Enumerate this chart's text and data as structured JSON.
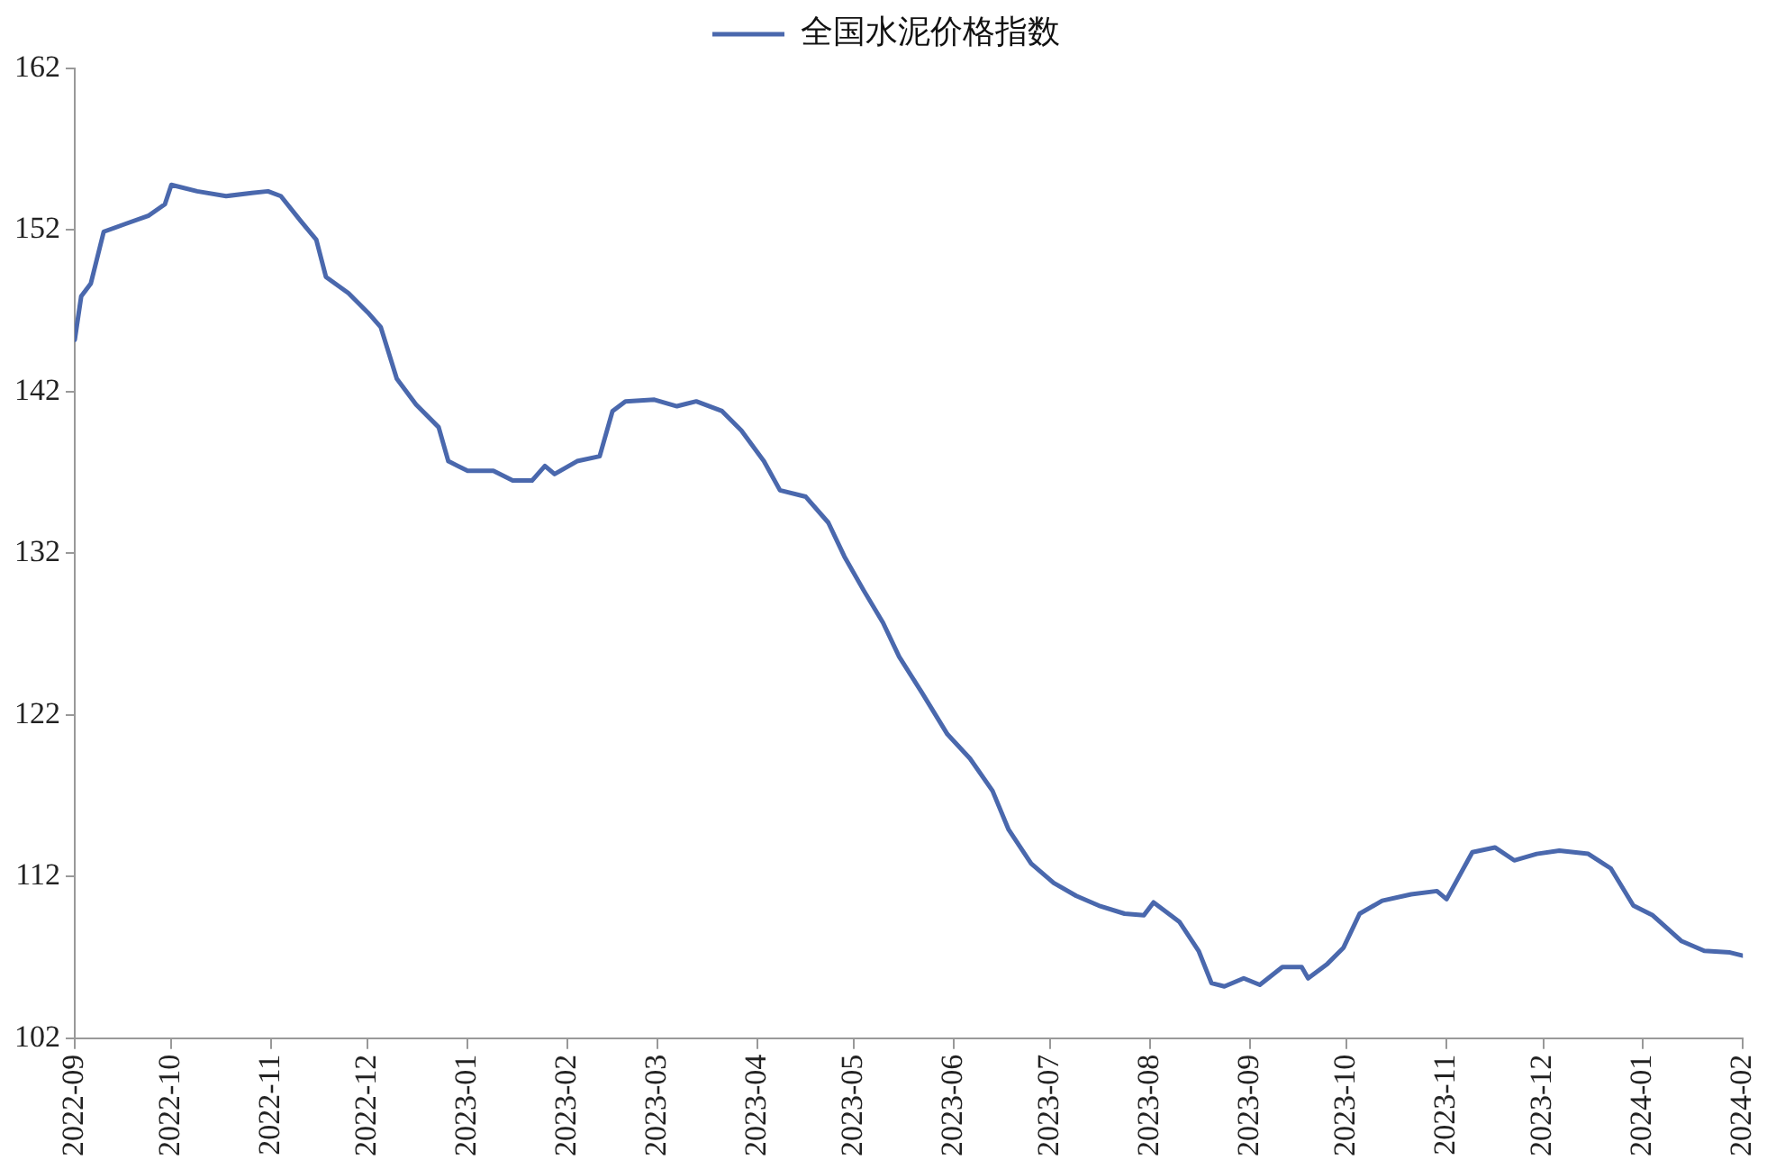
{
  "chart_data": {
    "type": "line",
    "legend": "top",
    "grid": false,
    "marker": "none",
    "line_style": "solid",
    "x": [
      "2022-09-01",
      "2022-09-03",
      "2022-09-06",
      "2022-09-10",
      "2022-09-17",
      "2022-09-24",
      "2022-09-29",
      "2022-10-01",
      "2022-10-09",
      "2022-10-18",
      "2022-10-26",
      "2022-10-31",
      "2022-11-04",
      "2022-11-10",
      "2022-11-15",
      "2022-11-18",
      "2022-11-25",
      "2022-12-01",
      "2022-12-05",
      "2022-12-10",
      "2022-12-16",
      "2022-12-23",
      "2022-12-26",
      "2023-01-01",
      "2023-01-09",
      "2023-01-15",
      "2023-01-21",
      "2023-01-25",
      "2023-01-28",
      "2023-02-04",
      "2023-02-11",
      "2023-02-15",
      "2023-02-19",
      "2023-02-28",
      "2023-03-07",
      "2023-03-13",
      "2023-03-21",
      "2023-03-27",
      "2023-04-03",
      "2023-04-08",
      "2023-04-16",
      "2023-04-23",
      "2023-04-28",
      "2023-05-04",
      "2023-05-10",
      "2023-05-15",
      "2023-05-22",
      "2023-05-30",
      "2023-06-06",
      "2023-06-13",
      "2023-06-18",
      "2023-06-25",
      "2023-07-02",
      "2023-07-09",
      "2023-07-16",
      "2023-07-24",
      "2023-07-30",
      "2023-08-02",
      "2023-08-10",
      "2023-08-16",
      "2023-08-20",
      "2023-08-24",
      "2023-08-30",
      "2023-09-04",
      "2023-09-11",
      "2023-09-17",
      "2023-09-19",
      "2023-09-25",
      "2023-09-30",
      "2023-10-05",
      "2023-10-12",
      "2023-10-21",
      "2023-10-29",
      "2023-11-01",
      "2023-11-09",
      "2023-11-16",
      "2023-11-22",
      "2023-11-29",
      "2023-12-06",
      "2023-12-15",
      "2023-12-22",
      "2023-12-29",
      "2024-01-04",
      "2024-01-13",
      "2024-01-20",
      "2024-01-28",
      "2024-02-01"
    ],
    "series": [
      {
        "name": "全国水泥价格指数",
        "color": "#4a68ad",
        "values": [
          145.2,
          147.9,
          148.7,
          151.9,
          152.4,
          152.9,
          153.6,
          154.8,
          154.4,
          154.1,
          154.3,
          154.4,
          154.1,
          152.6,
          151.4,
          149.1,
          148.1,
          146.9,
          146.0,
          142.8,
          141.2,
          139.8,
          137.7,
          137.1,
          137.1,
          136.5,
          136.5,
          137.4,
          136.9,
          137.7,
          138.0,
          140.8,
          141.4,
          141.5,
          141.1,
          141.4,
          140.8,
          139.6,
          137.7,
          135.9,
          135.5,
          133.9,
          131.8,
          129.7,
          127.7,
          125.6,
          123.4,
          120.8,
          119.3,
          117.3,
          114.9,
          112.8,
          111.6,
          110.8,
          110.2,
          109.7,
          109.6,
          110.4,
          109.2,
          107.4,
          105.4,
          105.2,
          105.7,
          105.3,
          106.4,
          106.4,
          105.7,
          106.6,
          107.6,
          109.7,
          110.5,
          110.9,
          111.1,
          110.6,
          113.5,
          113.8,
          113.0,
          113.4,
          113.6,
          113.4,
          112.5,
          110.2,
          109.6,
          108.0,
          107.4,
          107.3,
          107.1
        ]
      }
    ],
    "xlim": [
      "2022-09",
      "2024-02"
    ],
    "xticks": [
      "2022-09",
      "2022-10",
      "2022-11",
      "2022-12",
      "2023-01",
      "2023-02",
      "2023-03",
      "2023-04",
      "2023-05",
      "2023-06",
      "2023-07",
      "2023-08",
      "2023-09",
      "2023-10",
      "2023-11",
      "2023-12",
      "2024-01",
      "2024-02"
    ],
    "ylim": [
      102,
      162
    ],
    "yticks": [
      102,
      112,
      122,
      132,
      142,
      152,
      162
    ]
  }
}
